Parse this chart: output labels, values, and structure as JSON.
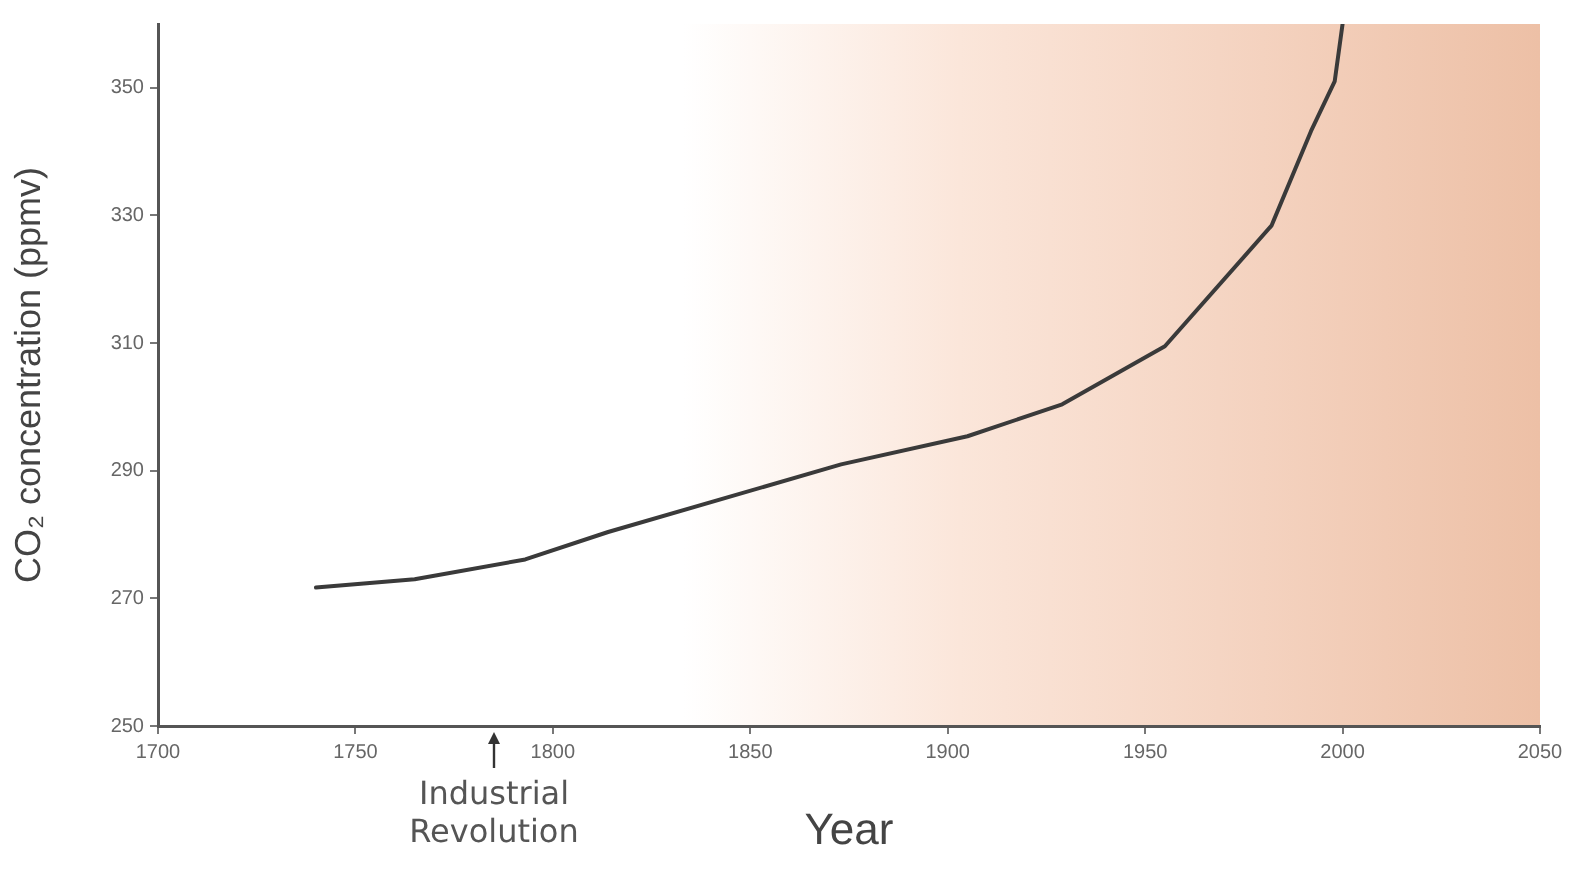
{
  "chart_data": {
    "type": "line",
    "xlabel": "Year",
    "ylabel": "CO₂ concentration (ppmv)",
    "x": [
      1740,
      1765,
      1793,
      1814,
      1873,
      1905,
      1929,
      1955,
      1982,
      1992,
      1998,
      2000
    ],
    "series": [
      {
        "color": "#3a3a3a",
        "values": [
          271.7,
          273,
          276.1,
          280.4,
          291,
          295.4,
          300.4,
          309.5,
          328.4,
          343.2,
          351,
          360
        ]
      }
    ],
    "xlim": [
      1700,
      2050
    ],
    "xticks": [
      1700,
      1750,
      1800,
      1850,
      1900,
      1950,
      2000,
      2050
    ],
    "ylim": [
      250,
      360
    ],
    "yticks": [
      250,
      270,
      290,
      310,
      330,
      350
    ],
    "grid": false,
    "legend": false,
    "marker": "none",
    "line_style": "solid",
    "annotations": [
      "Industrial Revolution"
    ]
  }
}
